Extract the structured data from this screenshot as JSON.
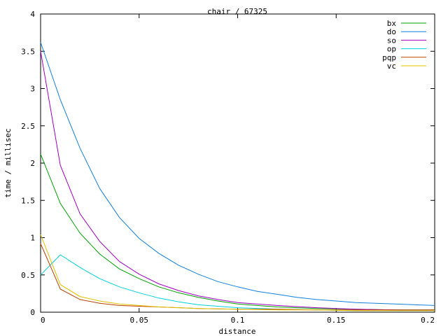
{
  "chart_data": {
    "type": "line",
    "title": "chair / 67325",
    "xlabel": "distance",
    "ylabel": "time / millisec",
    "xlim": [
      0,
      0.2
    ],
    "ylim": [
      0,
      4
    ],
    "xticks": [
      "0",
      "0.05",
      "0.1",
      "0.15",
      "0.2"
    ],
    "yticks": [
      "0",
      "0.5",
      "1",
      "1.5",
      "2",
      "2.5",
      "3",
      "3.5",
      "4"
    ],
    "grid": false,
    "legend": "top-right",
    "series": [
      {
        "name": "bx",
        "color": "#00a000",
        "x": [
          0,
          0.01,
          0.02,
          0.03,
          0.04,
          0.05,
          0.06,
          0.07,
          0.08,
          0.09,
          0.1,
          0.12,
          0.14,
          0.16,
          0.18,
          0.2
        ],
        "y": [
          2.12,
          1.46,
          1.06,
          0.78,
          0.58,
          0.45,
          0.34,
          0.26,
          0.2,
          0.15,
          0.11,
          0.07,
          0.05,
          0.04,
          0.03,
          0.03
        ]
      },
      {
        "name": "do",
        "color": "#1080e0",
        "x": [
          0,
          0.01,
          0.02,
          0.03,
          0.04,
          0.05,
          0.06,
          0.07,
          0.08,
          0.09,
          0.1,
          0.11,
          0.12,
          0.13,
          0.14,
          0.15,
          0.16,
          0.17,
          0.18,
          0.19,
          0.2
        ],
        "y": [
          3.62,
          2.85,
          2.2,
          1.66,
          1.27,
          0.99,
          0.79,
          0.63,
          0.51,
          0.41,
          0.34,
          0.28,
          0.24,
          0.2,
          0.17,
          0.15,
          0.13,
          0.12,
          0.11,
          0.1,
          0.09
        ]
      },
      {
        "name": "so",
        "color": "#a000c0",
        "x": [
          0,
          0.01,
          0.02,
          0.03,
          0.04,
          0.05,
          0.06,
          0.07,
          0.08,
          0.09,
          0.1,
          0.12,
          0.14,
          0.16,
          0.18,
          0.2
        ],
        "y": [
          3.5,
          1.97,
          1.32,
          0.95,
          0.68,
          0.51,
          0.38,
          0.29,
          0.22,
          0.17,
          0.13,
          0.09,
          0.06,
          0.04,
          0.03,
          0.02
        ]
      },
      {
        "name": "op",
        "color": "#00d0e0",
        "x": [
          0,
          0.01,
          0.02,
          0.03,
          0.04,
          0.05,
          0.06,
          0.07,
          0.08,
          0.09,
          0.1,
          0.12,
          0.14,
          0.16,
          0.18,
          0.2
        ],
        "y": [
          0.5,
          0.77,
          0.6,
          0.45,
          0.34,
          0.26,
          0.19,
          0.14,
          0.1,
          0.08,
          0.06,
          0.04,
          0.03,
          0.02,
          0.02,
          0.02
        ]
      },
      {
        "name": "pqp",
        "color": "#c04000",
        "x": [
          0,
          0.01,
          0.02,
          0.03,
          0.04,
          0.05,
          0.06,
          0.08,
          0.1,
          0.12,
          0.14,
          0.16,
          0.18,
          0.2
        ],
        "y": [
          0.92,
          0.31,
          0.17,
          0.12,
          0.09,
          0.08,
          0.07,
          0.05,
          0.04,
          0.04,
          0.03,
          0.03,
          0.03,
          0.03
        ]
      },
      {
        "name": "vc",
        "color": "#e0c000",
        "x": [
          0,
          0.01,
          0.02,
          0.03,
          0.04,
          0.05,
          0.06,
          0.08,
          0.1,
          0.12,
          0.14,
          0.16,
          0.18,
          0.2
        ],
        "y": [
          1.04,
          0.37,
          0.21,
          0.15,
          0.11,
          0.09,
          0.07,
          0.05,
          0.04,
          0.03,
          0.03,
          0.02,
          0.02,
          0.02
        ]
      }
    ]
  }
}
